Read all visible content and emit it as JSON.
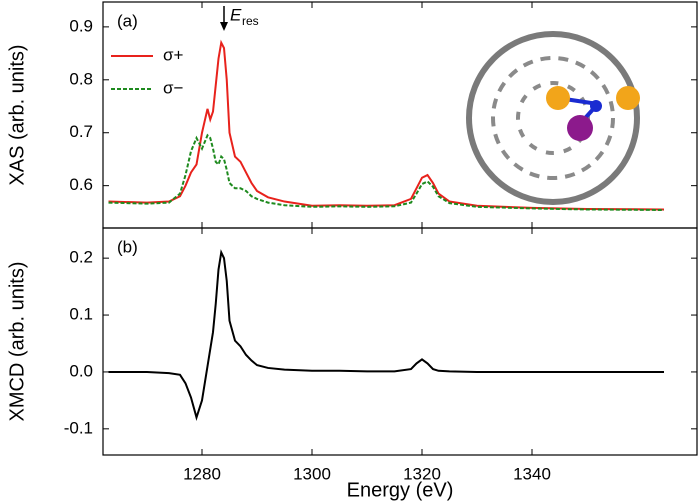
{
  "chart_data": [
    {
      "type": "line",
      "panel_label": "(a)",
      "ylabel": "XAS (arb. units)",
      "annotation": {
        "text": "E",
        "subscript": "res",
        "x": 1284
      },
      "legend": "upper left",
      "x": [
        1263,
        1270,
        1274,
        1276,
        1277,
        1278,
        1279,
        1280,
        1281,
        1281.5,
        1282,
        1282.5,
        1283,
        1283.5,
        1284,
        1284.5,
        1285,
        1286,
        1287,
        1288,
        1289,
        1290,
        1292,
        1295,
        1300,
        1305,
        1310,
        1315,
        1318,
        1319,
        1320,
        1321,
        1322,
        1323,
        1325,
        1330,
        1340,
        1350,
        1364
      ],
      "series": [
        {
          "name": "σ+",
          "color": "#e8221c",
          "linestyle": "solid",
          "values": [
            0.57,
            0.568,
            0.57,
            0.58,
            0.6,
            0.625,
            0.64,
            0.7,
            0.745,
            0.725,
            0.74,
            0.79,
            0.84,
            0.87,
            0.86,
            0.8,
            0.7,
            0.655,
            0.645,
            0.625,
            0.605,
            0.59,
            0.578,
            0.57,
            0.562,
            0.563,
            0.562,
            0.563,
            0.575,
            0.595,
            0.615,
            0.62,
            0.605,
            0.585,
            0.57,
            0.562,
            0.558,
            0.556,
            0.555
          ]
        },
        {
          "name": "σ−",
          "color": "#1e8a1e",
          "linestyle": "dashed",
          "values": [
            0.568,
            0.566,
            0.568,
            0.585,
            0.62,
            0.665,
            0.69,
            0.67,
            0.695,
            0.69,
            0.67,
            0.645,
            0.64,
            0.655,
            0.65,
            0.63,
            0.605,
            0.595,
            0.595,
            0.59,
            0.58,
            0.575,
            0.568,
            0.563,
            0.56,
            0.561,
            0.56,
            0.561,
            0.568,
            0.585,
            0.603,
            0.608,
            0.598,
            0.58,
            0.567,
            0.56,
            0.557,
            0.555,
            0.554
          ]
        }
      ],
      "xlim": [
        1262,
        1370
      ],
      "ylim": [
        0.52,
        0.947
      ],
      "yticks": [
        0.6,
        0.7,
        0.8,
        0.9
      ]
    },
    {
      "type": "line",
      "panel_label": "(b)",
      "ylabel": "XMCD (arb. units)",
      "xlabel": "Energy (eV)",
      "x": [
        1263,
        1270,
        1274,
        1276,
        1277,
        1278,
        1279,
        1280,
        1281,
        1281.5,
        1282,
        1282.5,
        1283,
        1283.5,
        1284,
        1284.5,
        1285,
        1286,
        1287,
        1288,
        1289,
        1290,
        1292,
        1295,
        1300,
        1305,
        1310,
        1315,
        1318,
        1319,
        1320,
        1321,
        1322,
        1323,
        1325,
        1330,
        1340,
        1350,
        1364
      ],
      "series": [
        {
          "color": "#000000",
          "linestyle": "solid",
          "values": [
            0,
            0,
            -0.002,
            -0.005,
            -0.02,
            -0.045,
            -0.08,
            -0.05,
            0.01,
            0.04,
            0.07,
            0.12,
            0.18,
            0.21,
            0.2,
            0.16,
            0.09,
            0.055,
            0.045,
            0.03,
            0.02,
            0.012,
            0.007,
            0.004,
            0.002,
            0.002,
            0.001,
            0.001,
            0.005,
            0.015,
            0.022,
            0.015,
            0.005,
            0.002,
            0.001,
            0,
            0,
            0,
            0
          ]
        }
      ],
      "xlim": [
        1262,
        1370
      ],
      "xticks": [
        1280,
        1300,
        1320,
        1340
      ],
      "ylim": [
        -0.146,
        0.253
      ],
      "yticks": [
        {
          "value": -0.1,
          "label": "-0.1"
        },
        {
          "value": 0,
          "label": "0.0"
        },
        0.1,
        0.2
      ]
    }
  ]
}
